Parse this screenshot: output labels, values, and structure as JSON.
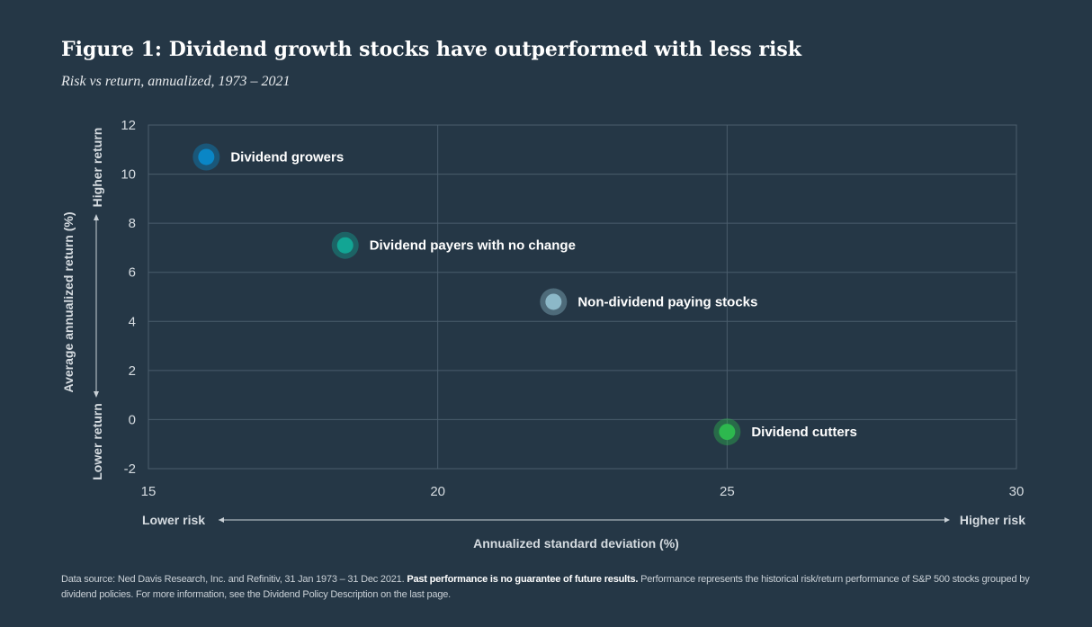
{
  "title": "Figure 1: Dividend growth stocks have outperformed with less risk",
  "subtitle": "Risk vs return, annualized, 1973 – 2021",
  "colors": {
    "background": "#253746",
    "grid": "#4a5d6c",
    "axis_text": "#d5dbe0",
    "label_text": "#ffffff"
  },
  "chart_data": {
    "type": "scatter",
    "xlabel": "Annualized standard deviation (%)",
    "ylabel": "Average annualized return (%)",
    "xlim": [
      15,
      30
    ],
    "ylim": [
      -2,
      12
    ],
    "x_ticks": [
      15,
      20,
      25,
      30
    ],
    "y_ticks": [
      -2,
      0,
      2,
      4,
      6,
      8,
      10,
      12
    ],
    "x_direction_labels": {
      "low": "Lower risk",
      "high": "Higher risk"
    },
    "y_direction_labels": {
      "low": "Lower return",
      "high": "Higher return"
    },
    "grid": true,
    "points": [
      {
        "label": "Dividend growers",
        "x": 16.0,
        "y": 10.7,
        "color": "#0a86c6"
      },
      {
        "label": "Dividend payers with no change",
        "x": 18.4,
        "y": 7.1,
        "color": "#12a594"
      },
      {
        "label": "Non-dividend paying stocks",
        "x": 22.0,
        "y": 4.8,
        "color": "#8cb8c8"
      },
      {
        "label": "Dividend cutters",
        "x": 25.0,
        "y": -0.5,
        "color": "#2db84e"
      }
    ]
  },
  "footnote": {
    "source_text": "Data source: Ned Davis Research, Inc. and Refinitiv, 31 Jan 1973 – 31 Dec 2021. ",
    "bold_text": "Past performance is no guarantee of future results.",
    "rest_text": " Performance represents the historical risk/return performance of S&P 500 stocks grouped by dividend policies. For more information, see the Dividend Policy Description on the last page."
  }
}
